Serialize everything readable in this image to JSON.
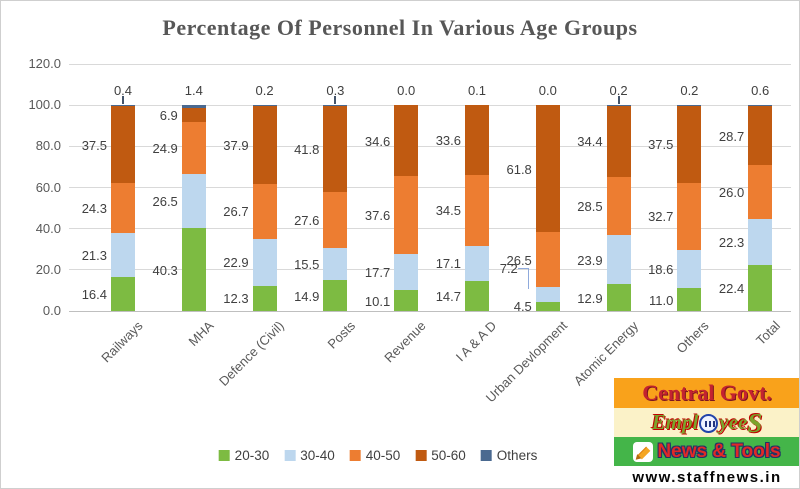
{
  "chart_data": {
    "type": "bar",
    "stacked": true,
    "title": "Percentage Of Personnel In Various Age Groups",
    "categories": [
      "Railways",
      "MHA",
      "Defence (Civil)",
      "Posts",
      "Revenue",
      "I A & A D",
      "Urban Devlopment",
      "Atomic Energy",
      "Others",
      "Total"
    ],
    "series": [
      {
        "name": "20-30",
        "color": "#7dbb42",
        "values": [
          16.4,
          40.3,
          12.3,
          14.9,
          10.1,
          14.7,
          4.5,
          12.9,
          11.0,
          22.4
        ]
      },
      {
        "name": "30-40",
        "color": "#bdd7ee",
        "values": [
          21.3,
          26.5,
          22.9,
          15.5,
          17.7,
          17.1,
          7.2,
          23.9,
          18.6,
          22.3
        ]
      },
      {
        "name": "40-50",
        "color": "#ed7d31",
        "values": [
          24.3,
          24.9,
          26.7,
          27.6,
          37.6,
          34.5,
          26.5,
          28.5,
          32.7,
          26.0
        ]
      },
      {
        "name": "50-60",
        "color": "#c05a11",
        "values": [
          37.5,
          6.9,
          37.9,
          41.8,
          34.6,
          33.6,
          61.8,
          34.4,
          37.5,
          28.7
        ]
      },
      {
        "name": "Others",
        "color": "#4a6990",
        "values": [
          0.4,
          1.4,
          0.2,
          0.3,
          0.0,
          0.1,
          0.0,
          0.2,
          0.2,
          0.6
        ]
      }
    ],
    "ylim": [
      0,
      120
    ],
    "y_tick_step": 20,
    "y_tick_decimals": 1,
    "data_label_decimals": 1,
    "grid": "horizontal",
    "legend_position": "bottom",
    "layout_hints": {
      "others_leader_indices": [
        0,
        3,
        7
      ],
      "elbow_label": {
        "category_index": 6,
        "series_index": 1
      }
    }
  },
  "watermark": {
    "line1": "Central Govt.",
    "line2_prefix": "Empl",
    "line2_mid": "yee",
    "line2_suffix": "S",
    "line3": "News & Tools",
    "line4": "www.staffnews.in",
    "colors": {
      "row1_bg": "#f9a21b",
      "row2_bg": "#fbf2c8",
      "row3_bg": "#44b549",
      "row4_bg": "#ffffff"
    }
  }
}
